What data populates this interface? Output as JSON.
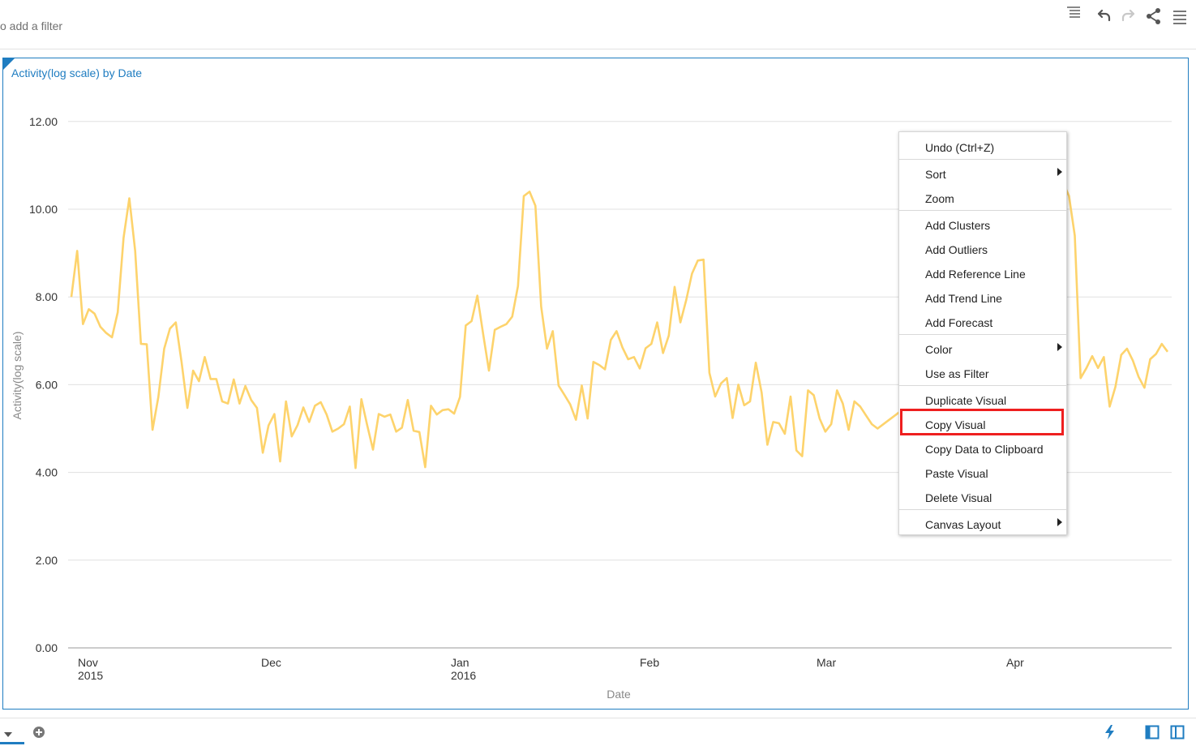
{
  "topbar": {
    "filter_hint": "o add a filter",
    "icons": [
      "lines-icon",
      "undo-icon",
      "redo-icon",
      "share-icon",
      "menu-icon"
    ]
  },
  "visual": {
    "title": "Activity(log scale) by Date"
  },
  "chart_data": {
    "type": "line",
    "title": "Activity(log scale) by Date",
    "xlabel": "Date",
    "ylabel": "Activity(log scale)",
    "ylim": [
      0,
      12
    ],
    "y_ticks": [
      "0.00",
      "2.00",
      "4.00",
      "6.00",
      "8.00",
      "10.00",
      "12.00"
    ],
    "x_ticks": [
      {
        "label": "Nov",
        "sub": "2015"
      },
      {
        "label": "Dec",
        "sub": ""
      },
      {
        "label": "Jan",
        "sub": "2016"
      },
      {
        "label": "Feb",
        "sub": ""
      },
      {
        "label": "Mar",
        "sub": ""
      },
      {
        "label": "Apr",
        "sub": ""
      }
    ],
    "grid": true,
    "color": "#fdd36c",
    "series": [
      {
        "values": [
          8.0,
          9.05,
          7.38,
          7.72,
          7.62,
          7.32,
          7.18,
          7.08,
          7.65,
          9.35,
          10.25,
          9.05,
          6.93,
          6.92,
          4.97,
          5.72,
          6.82,
          7.28,
          7.42,
          6.52,
          5.47,
          6.32,
          6.08,
          6.63,
          6.13,
          6.13,
          5.62,
          5.57,
          6.12,
          5.57,
          5.97,
          5.65,
          5.47,
          4.45,
          5.07,
          5.33,
          4.25,
          5.62,
          4.82,
          5.08,
          5.48,
          5.15,
          5.52,
          5.6,
          5.32,
          4.93,
          5.0,
          5.1,
          5.5,
          4.1,
          5.67,
          5.08,
          4.52,
          5.33,
          5.27,
          5.32,
          4.93,
          5.02,
          5.65,
          4.95,
          4.92,
          4.12,
          5.52,
          5.32,
          5.42,
          5.44,
          5.34,
          5.72,
          7.35,
          7.45,
          8.03,
          7.15,
          6.32,
          7.25,
          7.32,
          7.38,
          7.55,
          8.25,
          10.3,
          10.4,
          10.08,
          7.78,
          6.82,
          7.22,
          5.98,
          5.77,
          5.55,
          5.2,
          5.98,
          5.23,
          6.52,
          6.45,
          6.35,
          7.02,
          7.22,
          6.85,
          6.58,
          6.63,
          6.37,
          6.83,
          6.93,
          7.42,
          6.72,
          7.12,
          8.23,
          7.42,
          7.93,
          8.53,
          8.83,
          8.85,
          6.27,
          5.73,
          6.03,
          6.15,
          5.24,
          6.0,
          5.53,
          5.62,
          6.5,
          5.82,
          4.63,
          5.15,
          5.12,
          4.88,
          5.73,
          4.5,
          4.37,
          5.87,
          5.76,
          5.23,
          4.93,
          5.1,
          5.87,
          5.57,
          4.97,
          5.62,
          5.5,
          5.3,
          5.1,
          5.0,
          5.1,
          5.2,
          5.3,
          5.4,
          5.5,
          5.4,
          5.3,
          5.2,
          5.4,
          5.5,
          5.6,
          5.5,
          5.4,
          5.3,
          5.5,
          5.6,
          5.4,
          5.5,
          5.7,
          5.6,
          5.9,
          6.1,
          6.3,
          6.5,
          6.7,
          6.9,
          7.2,
          7.6,
          8.2,
          9.0,
          10.0,
          10.6,
          10.3,
          9.4,
          6.15,
          6.38,
          6.65,
          6.38,
          6.63,
          5.5,
          5.95,
          6.68,
          6.82,
          6.55,
          6.18,
          5.93,
          6.58,
          6.7,
          6.93,
          6.75
        ]
      }
    ]
  },
  "context_menu": {
    "items": [
      {
        "label": "Undo (Ctrl+Z)",
        "submenu": false,
        "sep_before": false
      },
      {
        "label": "Sort",
        "submenu": true,
        "sep_before": true
      },
      {
        "label": "Zoom",
        "submenu": false,
        "sep_before": false
      },
      {
        "label": "Add Clusters",
        "submenu": false,
        "sep_before": true
      },
      {
        "label": "Add Outliers",
        "submenu": false,
        "sep_before": false
      },
      {
        "label": "Add Reference Line",
        "submenu": false,
        "sep_before": false
      },
      {
        "label": "Add Trend Line",
        "submenu": false,
        "sep_before": false
      },
      {
        "label": "Add Forecast",
        "submenu": false,
        "sep_before": false
      },
      {
        "label": "Color",
        "submenu": true,
        "sep_before": true
      },
      {
        "label": "Use as Filter",
        "submenu": false,
        "sep_before": false
      },
      {
        "label": "Duplicate Visual",
        "submenu": false,
        "sep_before": true
      },
      {
        "label": "Copy Visual",
        "submenu": false,
        "sep_before": false
      },
      {
        "label": "Copy Data to Clipboard",
        "submenu": false,
        "sep_before": false
      },
      {
        "label": "Paste Visual",
        "submenu": false,
        "sep_before": false
      },
      {
        "label": "Delete Visual",
        "submenu": false,
        "sep_before": false
      },
      {
        "label": "Canvas Layout",
        "submenu": true,
        "sep_before": true
      }
    ],
    "highlighted": "Copy Visual",
    "highlight_color": "#ee1f1f"
  },
  "bottombar": {
    "icons": [
      "dropdown-icon",
      "add-page-icon",
      "auto-insights-icon",
      "left-panel-icon",
      "right-panel-icon"
    ]
  }
}
